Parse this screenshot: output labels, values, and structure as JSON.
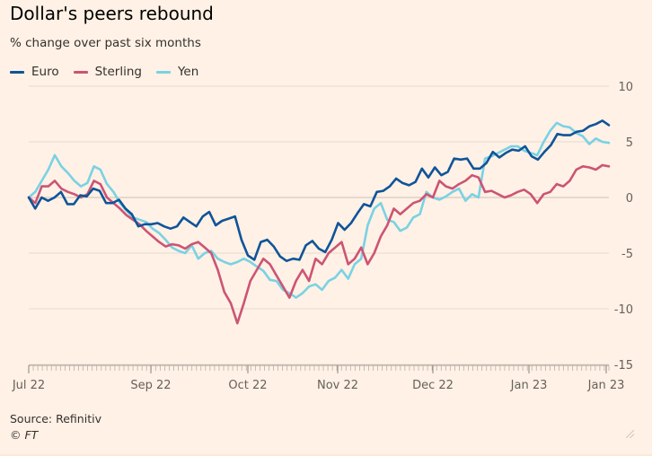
{
  "chart_data": {
    "type": "line",
    "title": "Dollar's peers rebound",
    "subtitle": "% change over past six months",
    "y_axis_side": "right",
    "ylim": [
      -15,
      10
    ],
    "yticks": [
      10,
      5,
      0,
      -5,
      -10,
      -15
    ],
    "xtick_labels": [
      "Jul 22",
      "Sep 22",
      "Oct 22",
      "Nov 22",
      "Dec 22",
      "Jan 23",
      "Jan 23"
    ],
    "grid": true,
    "legend_position": "top-left",
    "series": [
      {
        "name": "Euro",
        "color": "#0f5499",
        "values": [
          0.0,
          -1.0,
          0.0,
          -0.3,
          0.0,
          0.5,
          -0.6,
          -0.6,
          0.2,
          0.1,
          0.8,
          0.6,
          -0.5,
          -0.5,
          -0.2,
          -1.0,
          -1.5,
          -2.6,
          -2.4,
          -2.4,
          -2.3,
          -2.6,
          -2.8,
          -2.6,
          -1.8,
          -2.2,
          -2.6,
          -1.7,
          -1.3,
          -2.5,
          -2.1,
          -1.9,
          -1.7,
          -3.8,
          -5.2,
          -5.6,
          -4.0,
          -3.8,
          -4.4,
          -5.3,
          -5.7,
          -5.5,
          -5.6,
          -4.3,
          -3.9,
          -4.6,
          -4.9,
          -3.8,
          -2.3,
          -2.9,
          -2.3,
          -1.4,
          -0.6,
          -0.8,
          0.5,
          0.6,
          1.0,
          1.7,
          1.3,
          1.1,
          1.4,
          2.6,
          1.8,
          2.7,
          2.0,
          2.3,
          3.5,
          3.4,
          3.5,
          2.6,
          2.6,
          3.1,
          4.1,
          3.6,
          4.0,
          4.3,
          4.2,
          4.6,
          3.7,
          3.4,
          4.1,
          4.7,
          5.7,
          5.6,
          5.6,
          5.9,
          6.0,
          6.4,
          6.6,
          6.9,
          6.5
        ],
        "values_start_index": 0
      },
      {
        "name": "Sterling",
        "color": "#cc5474",
        "values": [
          0.0,
          -0.5,
          1.0,
          1.0,
          1.5,
          0.8,
          0.5,
          0.3,
          0.0,
          0.3,
          1.5,
          1.2,
          0.0,
          -0.5,
          -1.0,
          -1.6,
          -2.0,
          -2.4,
          -3.0,
          -3.5,
          -4.0,
          -4.4,
          -4.2,
          -4.3,
          -4.6,
          -4.2,
          -4.0,
          -4.5,
          -5.0,
          -6.5,
          -8.5,
          -9.5,
          -11.3,
          -9.5,
          -7.5,
          -6.5,
          -5.5,
          -6.0,
          -7.0,
          -8.0,
          -9.0,
          -7.5,
          -6.5,
          -7.5,
          -5.5,
          -6.0,
          -5.0,
          -4.5,
          -4.0,
          -6.0,
          -5.5,
          -4.5,
          -6.0,
          -5.0,
          -3.5,
          -2.5,
          -1.0,
          -1.5,
          -1.0,
          -0.5,
          -0.3,
          0.3,
          0.0,
          1.5,
          1.0,
          0.8,
          1.2,
          1.5,
          2.0,
          1.8,
          0.5,
          0.6,
          0.3,
          0.0,
          0.2,
          0.5,
          0.7,
          0.3,
          -0.5,
          0.3,
          0.5,
          1.2,
          1.0,
          1.5,
          2.5,
          2.8,
          2.7,
          2.5,
          2.9,
          2.8
        ],
        "values_start_index": 0
      },
      {
        "name": "Yen",
        "color": "#79d2e4",
        "values": [
          0.0,
          0.5,
          1.5,
          2.5,
          3.8,
          2.8,
          2.2,
          1.5,
          1.0,
          1.3,
          2.8,
          2.5,
          1.2,
          0.5,
          -0.5,
          -1.2,
          -1.8,
          -2.0,
          -2.2,
          -2.8,
          -3.2,
          -3.8,
          -4.5,
          -4.8,
          -5.0,
          -4.3,
          -5.5,
          -5.0,
          -4.8,
          -5.5,
          -5.8,
          -6.0,
          -5.8,
          -5.5,
          -5.8,
          -6.2,
          -6.6,
          -7.4,
          -7.5,
          -8.3,
          -8.6,
          -9.0,
          -8.6,
          -8.0,
          -7.8,
          -8.3,
          -7.5,
          -7.2,
          -6.5,
          -7.3,
          -6.0,
          -5.5,
          -2.5,
          -1.0,
          -0.5,
          -2.0,
          -2.2,
          -3.0,
          -2.7,
          -1.8,
          -1.5,
          0.5,
          0.0,
          -0.2,
          0.1,
          0.5,
          0.8,
          -0.3,
          0.3,
          0.0,
          3.5,
          3.7,
          4.0,
          4.3,
          4.6,
          4.6,
          4.2,
          4.0,
          3.8,
          5.0,
          6.0,
          6.7,
          6.4,
          6.3,
          5.8,
          5.5,
          4.8,
          5.3,
          5.0,
          4.9
        ],
        "values_start_index": 0
      }
    ]
  },
  "labels": {
    "title": "Dollar's peers rebound",
    "subtitle": "% change over past six months",
    "source": "Source: Refinitiv",
    "copyright": "© FT"
  },
  "legend": [
    {
      "name": "Euro",
      "color": "#0f5499"
    },
    {
      "name": "Sterling",
      "color": "#cc5474"
    },
    {
      "name": "Yen",
      "color": "#79d2e4"
    }
  ],
  "colors": {
    "background": "#fff1e5",
    "gridline": "#e6d9ce",
    "zero_line": "#d7c9bd",
    "axis_text": "#66605c"
  }
}
